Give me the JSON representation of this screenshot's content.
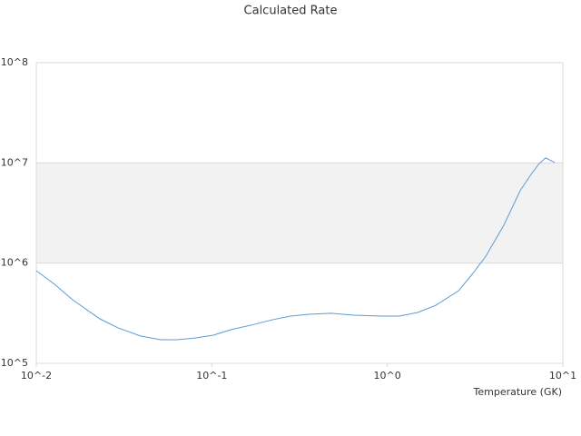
{
  "chart_data": {
    "type": "line",
    "title": "Calculated Rate",
    "x_label": "Temperature (GK)",
    "x": [
      0.01,
      0.0127,
      0.0161,
      0.023,
      0.0292,
      0.0394,
      0.0512,
      0.0634,
      0.0804,
      0.102,
      0.129,
      0.175,
      0.221,
      0.281,
      0.356,
      0.48,
      0.647,
      0.925,
      1.17,
      1.49,
      1.89,
      2.55,
      3.04,
      3.64,
      4.61,
      5.71,
      6.59,
      7.34,
      7.98,
      8.99
    ],
    "series": [
      {
        "color": "#5b9bd5",
        "values": [
          840000,
          615000,
          431000,
          278000,
          226000,
          187000,
          172000,
          172000,
          179000,
          191000,
          217000,
          245000,
          272000,
          296000,
          309000,
          316000,
          302000,
          296000,
          296000,
          322000,
          380000,
          531000,
          773000,
          1170000,
          2390000,
          5270000,
          7680000,
          9860000,
          11200000,
          10100000
        ]
      }
    ],
    "xscale": "log",
    "yscale": "log",
    "xlim": [
      0.01,
      10
    ],
    "ylim": [
      100000,
      100000000
    ],
    "xticks": [
      {
        "value": 0.01,
        "label": "10^-2"
      },
      {
        "value": 0.1,
        "label": "10^-1"
      },
      {
        "value": 1,
        "label": "10^0"
      },
      {
        "value": 10,
        "label": "10^1"
      }
    ],
    "yticks": [
      {
        "value": 100000,
        "label": "10^5"
      },
      {
        "value": 1000000,
        "label": "10^6"
      },
      {
        "value": 10000000,
        "label": "10^7"
      },
      {
        "value": 100000000,
        "label": "10^8"
      }
    ],
    "grid": true,
    "band_color": "#f2f2f2"
  }
}
